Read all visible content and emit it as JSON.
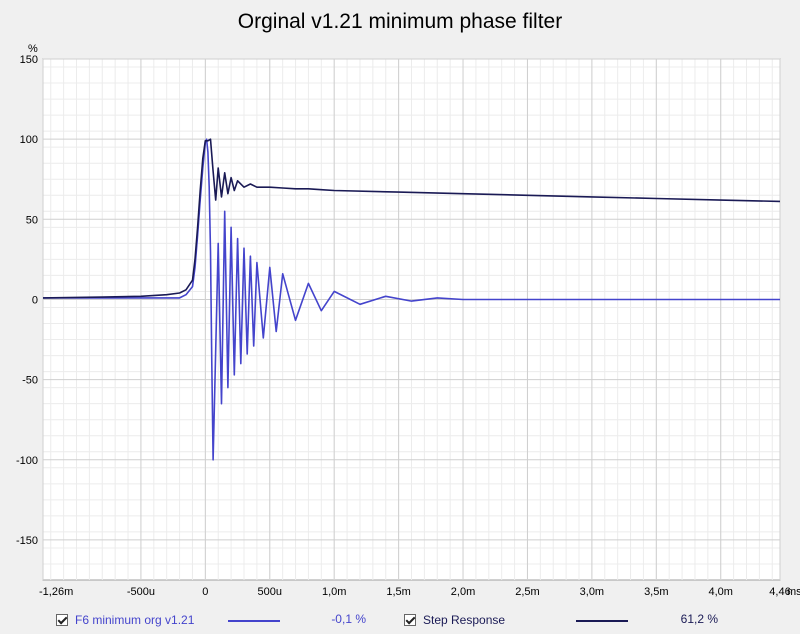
{
  "chart_data": {
    "type": "line",
    "title": "Orginal v1.21 minimum phase filter",
    "ylabel": "%",
    "xunit_label": "ms",
    "xlim": [
      -1.26,
      4.46
    ],
    "ylim": [
      -175,
      150
    ],
    "x_ticks": [
      {
        "value": -1.26,
        "label": "-1,26m"
      },
      {
        "value": -0.5,
        "label": "-500u"
      },
      {
        "value": 0,
        "label": "0"
      },
      {
        "value": 0.5,
        "label": "500u"
      },
      {
        "value": 1.0,
        "label": "1,0m"
      },
      {
        "value": 1.5,
        "label": "1,5m"
      },
      {
        "value": 2.0,
        "label": "2,0m"
      },
      {
        "value": 2.5,
        "label": "2,5m"
      },
      {
        "value": 3.0,
        "label": "3,0m"
      },
      {
        "value": 3.5,
        "label": "3,5m"
      },
      {
        "value": 4.0,
        "label": "4,0m"
      },
      {
        "value": 4.46,
        "label": "4,46"
      }
    ],
    "y_ticks": [
      {
        "value": 150,
        "label": "150"
      },
      {
        "value": 100,
        "label": "100"
      },
      {
        "value": 50,
        "label": "50"
      },
      {
        "value": 0,
        "label": "0"
      },
      {
        "value": -50,
        "label": "-50"
      },
      {
        "value": -100,
        "label": "-100"
      },
      {
        "value": -150,
        "label": "-150"
      }
    ],
    "grid": true,
    "series": [
      {
        "name": "F6 minimum org v1.21",
        "color": "#4444cc",
        "cursor_value": "-0,1 %",
        "x": [
          -1.26,
          -0.8,
          -0.5,
          -0.3,
          -0.2,
          -0.15,
          -0.1,
          -0.08,
          -0.06,
          -0.04,
          -0.02,
          0.0,
          0.01,
          0.02,
          0.03,
          0.04,
          0.05,
          0.06,
          0.075,
          0.1,
          0.125,
          0.15,
          0.175,
          0.2,
          0.225,
          0.25,
          0.275,
          0.3,
          0.325,
          0.35,
          0.375,
          0.4,
          0.45,
          0.5,
          0.55,
          0.6,
          0.7,
          0.8,
          0.9,
          1.0,
          1.2,
          1.4,
          1.6,
          1.8,
          2.0,
          2.5,
          3.0,
          4.46
        ],
        "y": [
          1,
          1,
          1,
          1,
          1,
          3,
          8,
          20,
          40,
          62,
          82,
          98,
          100,
          92,
          70,
          30,
          -40,
          -100,
          -50,
          35,
          -65,
          55,
          -55,
          45,
          -47,
          38,
          -40,
          32,
          -34,
          27,
          -29,
          23,
          -24,
          20,
          -20,
          16,
          -13,
          10,
          -7,
          5,
          -3,
          2,
          -1,
          1,
          0,
          0,
          0,
          0
        ]
      },
      {
        "name": "Step Response",
        "color": "#1a1a55",
        "cursor_value": "61,2 %",
        "x": [
          -1.26,
          -0.8,
          -0.5,
          -0.3,
          -0.2,
          -0.15,
          -0.1,
          -0.08,
          -0.06,
          -0.04,
          -0.02,
          0.0,
          0.02,
          0.04,
          0.06,
          0.08,
          0.1,
          0.125,
          0.15,
          0.175,
          0.2,
          0.225,
          0.25,
          0.3,
          0.35,
          0.4,
          0.5,
          0.6,
          0.7,
          0.8,
          0.9,
          1.0,
          1.5,
          2.0,
          2.5,
          3.0,
          3.5,
          4.0,
          4.46
        ],
        "y": [
          1,
          1.5,
          2,
          3,
          4,
          6,
          12,
          25,
          45,
          68,
          88,
          99,
          99,
          100,
          80,
          62,
          82,
          64,
          79,
          66,
          76,
          68,
          74,
          70,
          72,
          70,
          70,
          69.5,
          69,
          69,
          68.5,
          68,
          67,
          66,
          65,
          64,
          63,
          62,
          61.2
        ]
      }
    ]
  },
  "legend": [
    {
      "label": "F6 minimum org v1.21",
      "value": "-0,1 %"
    },
    {
      "label": "Step Response",
      "value": "61,2 %"
    }
  ]
}
